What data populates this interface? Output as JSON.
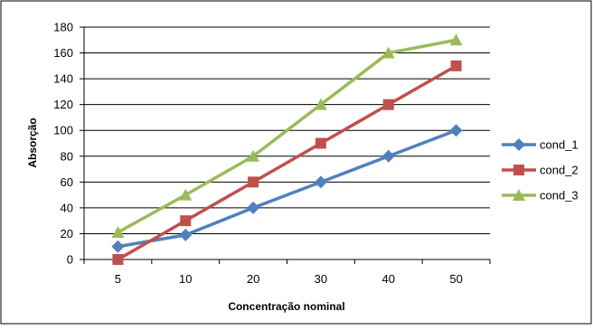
{
  "chart_data": {
    "type": "line",
    "categories": [
      "5",
      "10",
      "20",
      "30",
      "40",
      "50"
    ],
    "xlabel": "Concentração nominal",
    "ylabel": "Absorção",
    "ylim": [
      0,
      180
    ],
    "ytick_step": 20,
    "yticks": [
      "0",
      "20",
      "40",
      "60",
      "80",
      "100",
      "120",
      "140",
      "160",
      "180"
    ],
    "grid": "horizontal",
    "legend_position": "right",
    "series": [
      {
        "name": "cond_1",
        "values": [
          10,
          19,
          40,
          60,
          80,
          100
        ],
        "color": "#4F81BD",
        "marker": "diamond"
      },
      {
        "name": "cond_2",
        "values": [
          0,
          30,
          60,
          90,
          120,
          150
        ],
        "color": "#C0504D",
        "marker": "square"
      },
      {
        "name": "cond_3",
        "values": [
          21,
          50,
          80,
          120,
          160,
          170
        ],
        "color": "#9BBB59",
        "marker": "triangle"
      }
    ]
  }
}
